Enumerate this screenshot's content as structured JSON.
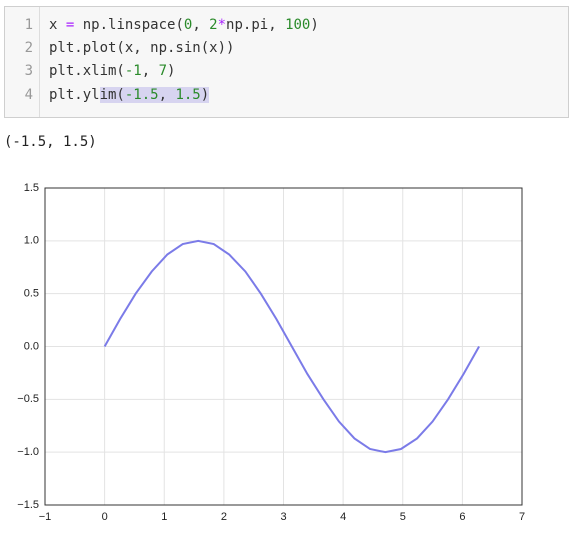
{
  "code": {
    "lines": [
      {
        "number": "1",
        "tokens": [
          "x ",
          "=",
          " np.linspace(",
          "0",
          ", ",
          "2",
          "*",
          "np.pi, ",
          "100",
          ")"
        ]
      },
      {
        "number": "2",
        "tokens": [
          "plt.plot(x, np.sin(x))"
        ]
      },
      {
        "number": "3",
        "tokens": [
          "plt.xlim(",
          "-1",
          ", ",
          "7",
          ")"
        ]
      },
      {
        "number": "4",
        "tokens": [
          "plt.yl",
          "im(",
          "-1.5",
          ", ",
          "1.5",
          ")"
        ]
      }
    ]
  },
  "output": {
    "text": "(-1.5, 1.5)"
  },
  "chart_data": {
    "type": "line",
    "x": [
      0,
      0.26,
      0.52,
      0.79,
      1.05,
      1.31,
      1.57,
      1.83,
      2.09,
      2.36,
      2.62,
      2.88,
      3.14,
      3.4,
      3.67,
      3.93,
      4.19,
      4.45,
      4.71,
      4.97,
      5.24,
      5.5,
      5.76,
      6.02,
      6.28
    ],
    "series": [
      {
        "color": "#7b7be8",
        "values": [
          0,
          0.26,
          0.5,
          0.71,
          0.87,
          0.97,
          1,
          0.97,
          0.87,
          0.71,
          0.5,
          0.26,
          0,
          -0.26,
          -0.5,
          -0.71,
          -0.87,
          -0.97,
          -1,
          -0.97,
          -0.87,
          -0.71,
          -0.5,
          -0.26,
          0
        ]
      }
    ],
    "xlim": [
      -1,
      7
    ],
    "xticks": [
      {
        "value": -1,
        "label": "−1"
      },
      0,
      1,
      2,
      3,
      4,
      5,
      6,
      7
    ],
    "ylim": [
      -1.5,
      1.5
    ],
    "yticks": [
      {
        "value": -1.5,
        "label": "−1.5"
      },
      {
        "value": -1,
        "label": "−1.0"
      },
      {
        "value": -0.5,
        "label": "−0.5"
      },
      {
        "value": 0,
        "label": "0.0"
      },
      0.5,
      {
        "value": 1,
        "label": "1.0"
      },
      1.5
    ],
    "grid": true
  }
}
